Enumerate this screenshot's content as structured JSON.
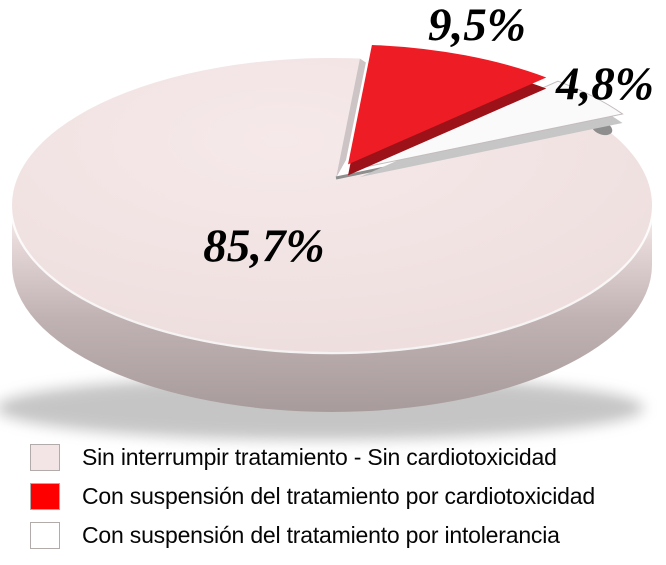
{
  "chart_data": {
    "type": "pie",
    "style": "3d-exploded",
    "title": "",
    "legend_position": "bottom",
    "unit": "%",
    "decimal_separator": ",",
    "start_angle_deg": 5,
    "draw_order_clockwise": [
      1,
      2,
      0
    ],
    "slices": [
      {
        "label": "Sin interrumpir tratamiento - Sin cardiotoxicidad",
        "value": 85.7,
        "display": "85,7%",
        "color": "#f1e2e2",
        "side_color": "#b3a5a5",
        "swatch_color": "#f3e5e5",
        "exploded": false
      },
      {
        "label": "Con suspensión del tratamiento por cardiotoxicidad",
        "value": 9.5,
        "display": "9,5%",
        "color": "#ee1c24",
        "side_color": "#9d1118",
        "swatch_color": "#fe0000",
        "exploded": true
      },
      {
        "label": "Con suspensión del tratamiento por intolerancia",
        "value": 4.8,
        "display": "4,8%",
        "color": "#fafafa",
        "side_color": "#c6c6c6",
        "swatch_color": "#ffffff",
        "exploded": true
      }
    ]
  },
  "colors": {
    "background": "#ffffff",
    "label_text": "#000000",
    "edge_gray": "#8e8e8e",
    "cut_sliver": "#cdc5c5",
    "shadow": "#8d8d8d"
  }
}
